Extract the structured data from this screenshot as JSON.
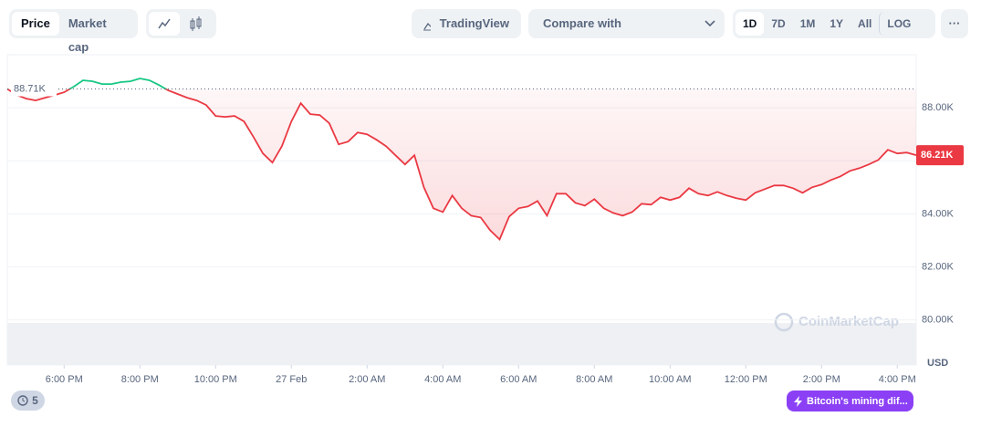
{
  "toolbar": {
    "tabs": [
      "Price",
      "Market cap"
    ],
    "tradingview": "TradingView",
    "compare": "Compare with",
    "ranges": [
      "1D",
      "7D",
      "1M",
      "1Y",
      "All",
      "LOG"
    ],
    "more": "···"
  },
  "chart_data": {
    "type": "line",
    "series": [
      {
        "name": "Price",
        "color": "#ea3943",
        "up_color": "#16c784",
        "values": [
          88710,
          88480,
          88345,
          88276,
          88380,
          88480,
          88586,
          88793,
          89035,
          89000,
          88897,
          88897,
          88966,
          89000,
          89104,
          89035,
          88862,
          88655,
          88517,
          88380,
          88276,
          88103,
          87690,
          87655,
          87690,
          87483,
          86897,
          86276,
          85931,
          86552,
          87483,
          88172,
          87759,
          87724,
          87414,
          86621,
          86724,
          87069,
          87000,
          86793,
          86552,
          86207,
          85862,
          86207,
          85000,
          84207,
          84069,
          84690,
          84207,
          83931,
          83862,
          83379,
          83034,
          83897,
          84207,
          84276,
          84483,
          83931,
          84759,
          84759,
          84414,
          84310,
          84552,
          84207,
          84034,
          83931,
          84069,
          84379,
          84345,
          84621,
          84517,
          84621,
          84966,
          84759,
          84690,
          84828,
          84690,
          84586,
          84517,
          84793,
          84931,
          85069,
          85069,
          84966,
          84793,
          85000,
          85103,
          85276,
          85414,
          85621,
          85724,
          85862,
          86034,
          86414,
          86276,
          86310,
          86210
        ]
      }
    ],
    "xlim": [
      0,
      96
    ],
    "xticks": [
      {
        "value": 6,
        "label": "6:00 PM"
      },
      {
        "value": 14,
        "label": "8:00 PM"
      },
      {
        "value": 22,
        "label": "10:00 PM"
      },
      {
        "value": 30,
        "label": "27 Feb"
      },
      {
        "value": 38,
        "label": "2:00 AM"
      },
      {
        "value": 46,
        "label": "4:00 AM"
      },
      {
        "value": 54,
        "label": "6:00 AM"
      },
      {
        "value": 62,
        "label": "8:00 AM"
      },
      {
        "value": 70,
        "label": "10:00 AM"
      },
      {
        "value": 78,
        "label": "12:00 PM"
      },
      {
        "value": 86,
        "label": "2:00 PM"
      },
      {
        "value": 94,
        "label": "4:00 PM"
      }
    ],
    "ylim": [
      78300,
      90000
    ],
    "yticks": [
      {
        "value": 80000,
        "label": "80.00K"
      },
      {
        "value": 82000,
        "label": "82.00K"
      },
      {
        "value": 84000,
        "label": "84.00K"
      },
      {
        "value": 86000,
        "label": "86.00K"
      },
      {
        "value": 88000,
        "label": "88.00K"
      }
    ],
    "y_unit": "USD",
    "reference": {
      "value": 88710,
      "label": "88.71K"
    },
    "last_label": {
      "value": 86210,
      "label": "86.21K"
    },
    "grid": true,
    "watermark": "CoinMarketCap"
  },
  "footer": {
    "alerts": "5",
    "news": "Bitcoin's mining dif..."
  }
}
